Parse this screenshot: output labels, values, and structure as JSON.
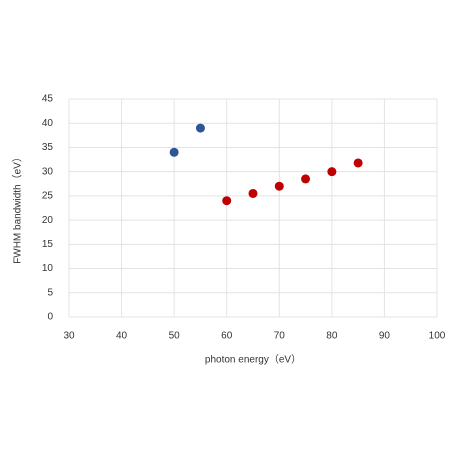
{
  "chart_data": {
    "type": "scatter",
    "x_label": "photon energy（eV）",
    "y_label": "FWHM bandwidth（eV）",
    "series": [
      {
        "color": "#2f5597",
        "x": [
          50,
          55
        ],
        "values": [
          34,
          39
        ]
      },
      {
        "color": "#c00000",
        "x": [
          60,
          65,
          70,
          75,
          80,
          85
        ],
        "values": [
          24,
          25.5,
          27,
          28.5,
          30,
          31.8
        ]
      }
    ],
    "xlim": [
      30,
      100
    ],
    "xticks": [
      30,
      40,
      50,
      60,
      70,
      80,
      90,
      100
    ],
    "ylim": [
      0,
      45
    ],
    "yticks": [
      0,
      5,
      10,
      15,
      20,
      25,
      30,
      35,
      40,
      45
    ],
    "grid": true
  }
}
